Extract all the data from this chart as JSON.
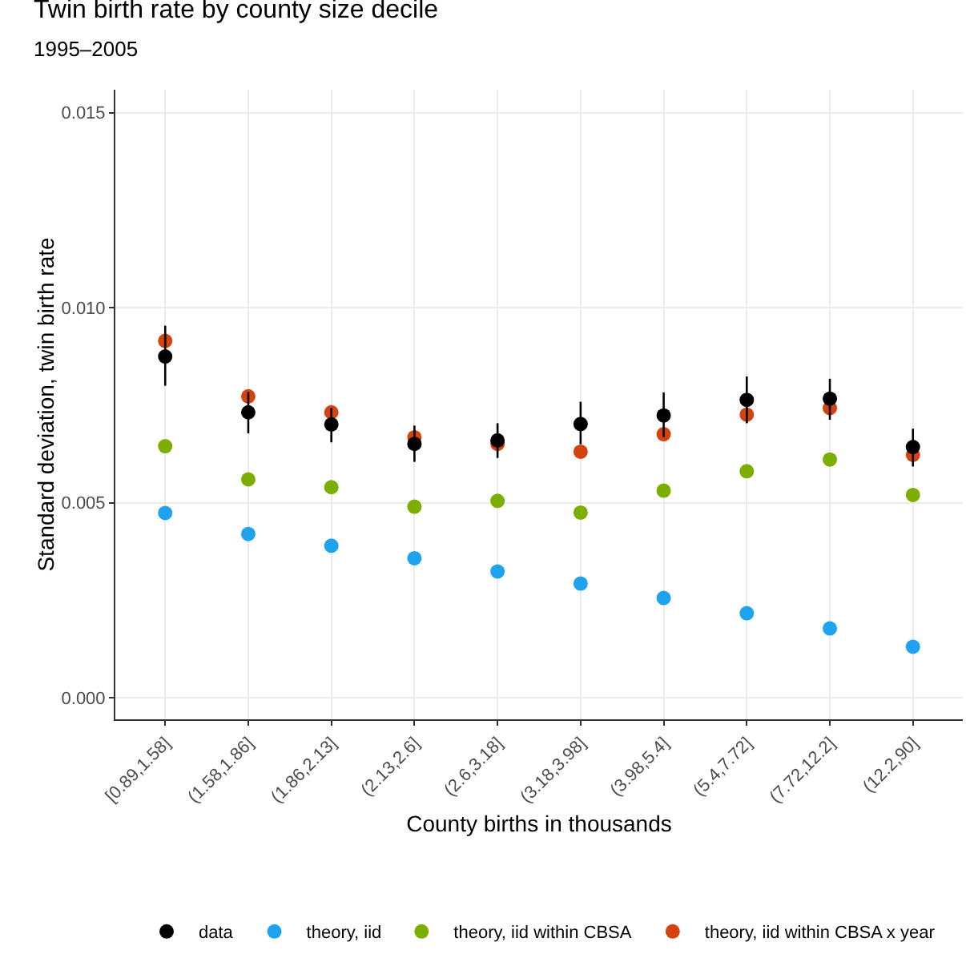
{
  "chart_data": {
    "type": "scatter",
    "title": "Twin birth rate by county size decile",
    "subtitle": "1995–2005",
    "xlabel": "County births in thousands",
    "ylabel": "Standard deviation, twin birth rate",
    "categories": [
      "[0.89,1.58]",
      "(1.58,1.86]",
      "(1.86,2.13]",
      "(2.13,2.6]",
      "(2.6,3.18]",
      "(3.18,3.98]",
      "(3.98,5.4]",
      "(5.4,7.72]",
      "(7.72,12.2]",
      "(12.2,90]"
    ],
    "series": [
      {
        "name": "data",
        "color": "#000000",
        "values": [
          0.00875,
          0.00732,
          0.00701,
          0.00651,
          0.0066,
          0.00702,
          0.00724,
          0.00764,
          0.00767,
          0.00643
        ],
        "errors": [
          [
            0.008,
            0.00954
          ],
          [
            0.00678,
            0.00784
          ],
          [
            0.00655,
            0.00743
          ],
          [
            0.00605,
            0.00698
          ],
          [
            0.00615,
            0.00704
          ],
          [
            0.0065,
            0.00759
          ],
          [
            0.00668,
            0.00783
          ],
          [
            0.00704,
            0.00824
          ],
          [
            0.00713,
            0.00818
          ],
          [
            0.00593,
            0.0069
          ]
        ]
      },
      {
        "name": "theory, iid",
        "color": "#1fa3ee",
        "values": [
          0.00474,
          0.0042,
          0.0039,
          0.00358,
          0.00324,
          0.00293,
          0.00256,
          0.00217,
          0.00178,
          0.00131
        ]
      },
      {
        "name": "theory, iid within CBSA",
        "color": "#7cae00",
        "values": [
          0.00645,
          0.0056,
          0.0054,
          0.0049,
          0.00505,
          0.00475,
          0.00531,
          0.00581,
          0.00611,
          0.0052
        ]
      },
      {
        "name": "theory, iid within CBSA x year",
        "color": "#d4420f",
        "values": [
          0.00915,
          0.00773,
          0.00732,
          0.00668,
          0.00651,
          0.00631,
          0.00676,
          0.00726,
          0.00743,
          0.00623
        ]
      }
    ],
    "ylim": [
      -0.00055,
      0.01559
    ],
    "yticks": [
      {
        "value": 0,
        "label": "0.000"
      },
      {
        "value": 0.005,
        "label": "0.005"
      },
      {
        "value": 0.01,
        "label": "0.010"
      },
      {
        "value": 0.015,
        "label": "0.015"
      }
    ],
    "grid": true,
    "legend": "bottom",
    "marker": "circle"
  }
}
